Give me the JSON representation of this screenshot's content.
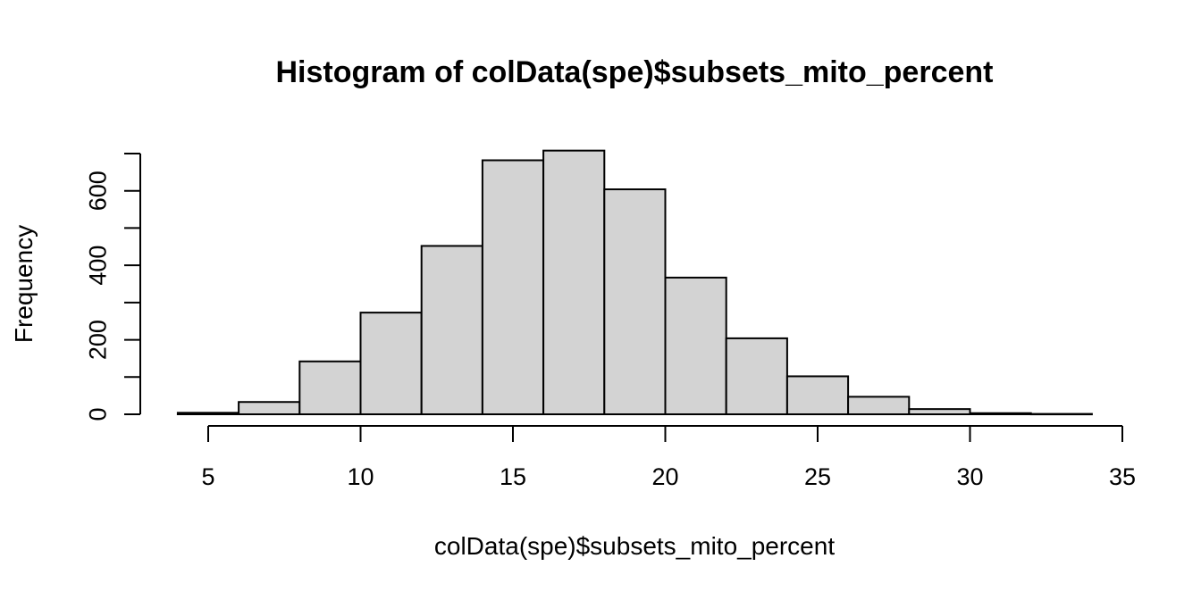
{
  "chart_data": {
    "type": "bar",
    "title": "Histogram of colData(spe)$subsets_mito_percent",
    "xlabel": "colData(spe)$subsets_mito_percent",
    "ylabel": "Frequency",
    "bin_edges": [
      4,
      6,
      8,
      10,
      12,
      14,
      16,
      18,
      20,
      22,
      24,
      26,
      28,
      30,
      32,
      34
    ],
    "values": [
      4,
      33,
      142,
      273,
      452,
      682,
      708,
      604,
      367,
      204,
      102,
      47,
      14,
      3,
      1
    ],
    "xlim": [
      5,
      35
    ],
    "ylim": [
      0,
      700
    ],
    "x_ticks": [
      5,
      10,
      15,
      20,
      25,
      30,
      35
    ],
    "y_ticks": [
      0,
      100,
      200,
      300,
      400,
      500,
      600,
      700
    ],
    "y_tick_labels": [
      "0",
      "",
      "200",
      "",
      "400",
      "",
      "600",
      ""
    ],
    "bar_fill": "#d3d3d3",
    "bar_stroke": "#000000",
    "grid": false,
    "legend": "none"
  }
}
